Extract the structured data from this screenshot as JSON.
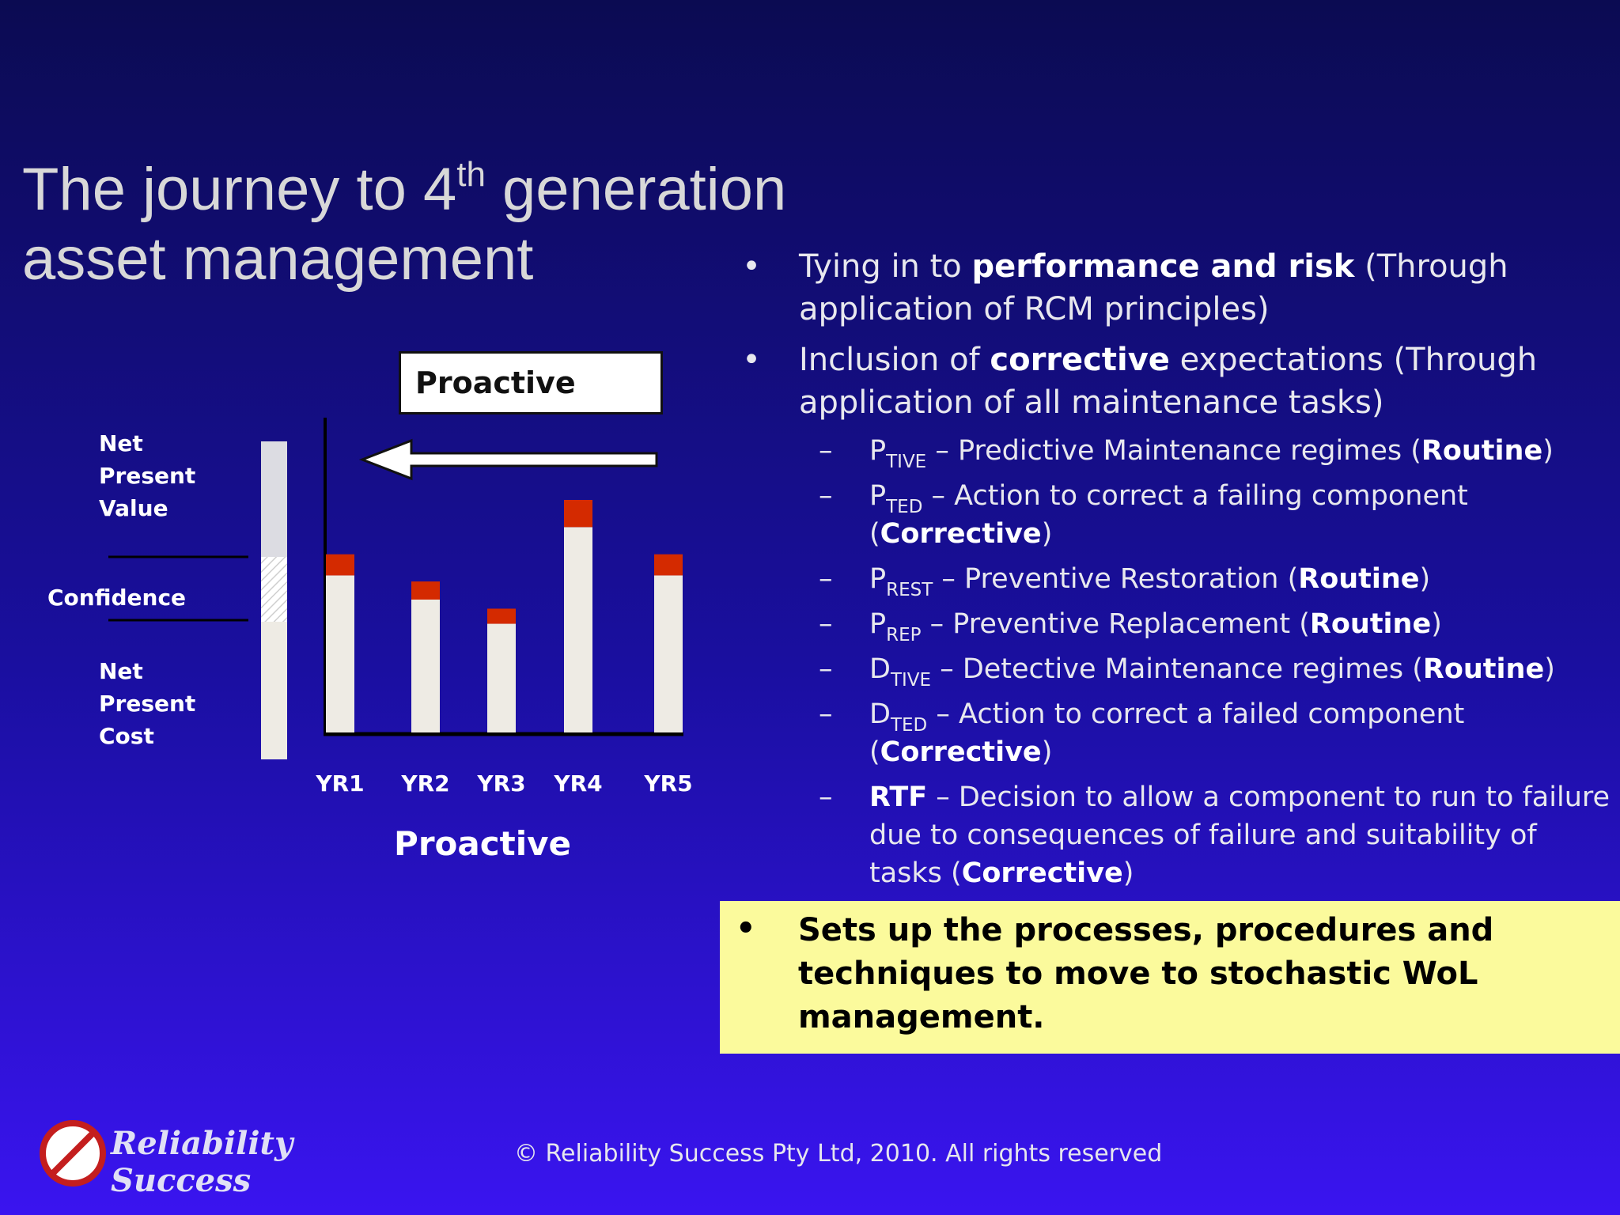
{
  "title": {
    "part1": "The journey to 4",
    "sup": "th",
    "part2": " generation",
    "line2": "asset management"
  },
  "bullets": [
    {
      "pre": "Tying in to ",
      "bold": "performance and risk",
      "post": " (Through application of RCM principles)"
    },
    {
      "pre": "Inclusion of ",
      "bold": "corrective",
      "post": " expectations (Through application of all maintenance tasks)"
    }
  ],
  "subbullets": [
    {
      "code": "P",
      "sub": "TIVE",
      "text": " – Predictive Maintenance regimes (",
      "tag": "Routine",
      "close": ")"
    },
    {
      "code": "P",
      "sub": "TED",
      "text": " – Action to correct a failing component (",
      "tag": "Corrective",
      "close": ")"
    },
    {
      "code": "P",
      "sub": "REST",
      "text": " – Preventive Restoration (",
      "tag": "Routine",
      "close": ")"
    },
    {
      "code": "P",
      "sub": "REP",
      "text": " – Preventive Replacement (",
      "tag": "Routine",
      "close": ")"
    },
    {
      "code": "D",
      "sub": "TIVE",
      "text": " – Detective Maintenance regimes (",
      "tag": "Routine",
      "close": ")"
    },
    {
      "code": "D",
      "sub": "TED",
      "text": " – Action to correct a failed component (",
      "tag": "Corrective",
      "close": ")"
    },
    {
      "code": "RTF",
      "sub": "",
      "text": " – Decision to allow a component to run to failure due to consequences of failure and suitability of tasks (",
      "tag": "Corrective",
      "close": ")"
    }
  ],
  "sub_dash": "–",
  "bullet_symbol": "•",
  "highlight": "Sets up the processes, procedures and techniques to move to stochastic WoL management.",
  "chart_data": {
    "type": "bar",
    "title": "Proactive",
    "box_label": "Proactive",
    "xlabel": "Proactive",
    "categories": [
      "YR1",
      "YR2",
      "YR3",
      "YR4",
      "YR5"
    ],
    "series": [
      {
        "name": "base",
        "color": "#eeebe4",
        "values": [
          52,
          44,
          36,
          68,
          52
        ]
      },
      {
        "name": "top",
        "color": "#d42a00",
        "values": [
          7,
          6,
          5,
          9,
          7
        ]
      }
    ],
    "ylim": [
      0,
      110
    ],
    "left_labels": {
      "npv": [
        "Net",
        "Present",
        "Value"
      ],
      "confidence": "Confidence",
      "npc": [
        "Net",
        "Present",
        "Cost"
      ]
    }
  },
  "footer": {
    "logo_text": "Reliability Success",
    "copyright": "© Reliability Success Pty  Ltd, 2010. All rights reserved"
  },
  "colors": {
    "highlight_bg": "#fbfa9c",
    "bar_top": "#d42a00",
    "bar_base": "#eeebe4"
  }
}
